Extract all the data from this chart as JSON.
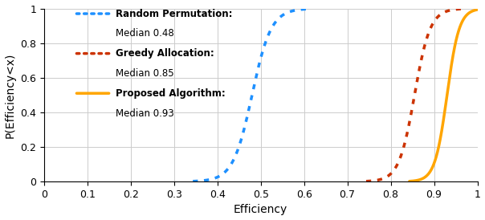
{
  "title": "",
  "xlabel": "Efficiency",
  "ylabel": "P(Efficiency<x)",
  "xlim": [
    0,
    1.0
  ],
  "ylim": [
    0,
    1.0
  ],
  "xticks": [
    0,
    0.1,
    0.2,
    0.3,
    0.4,
    0.5,
    0.6,
    0.7,
    0.8,
    0.9,
    1.0
  ],
  "yticks": [
    0,
    0.2,
    0.4,
    0.6,
    0.8,
    1.0
  ],
  "curves": [
    {
      "label_bold": "Random Permutation:",
      "label_normal": "Median 0.48",
      "median": 0.48,
      "scale": 0.022,
      "color": "#1E90FF",
      "linestyle": "dotted",
      "linewidth": 2.5
    },
    {
      "label_bold": "Greedy Allocation:",
      "label_normal": "Median 0.85",
      "median": 0.855,
      "scale": 0.018,
      "color": "#CC3300",
      "linestyle": "dotted",
      "linewidth": 2.5
    },
    {
      "label_bold": "Proposed Algorithm:",
      "label_normal": "Median 0.93",
      "median": 0.93,
      "scale": 0.014,
      "color": "#FFA500",
      "linestyle": "solid",
      "linewidth": 2.5
    }
  ],
  "legend_fontsize": 8.5,
  "tick_fontsize": 9,
  "label_fontsize": 10,
  "grid_color": "#cccccc",
  "grid_linewidth": 0.7
}
